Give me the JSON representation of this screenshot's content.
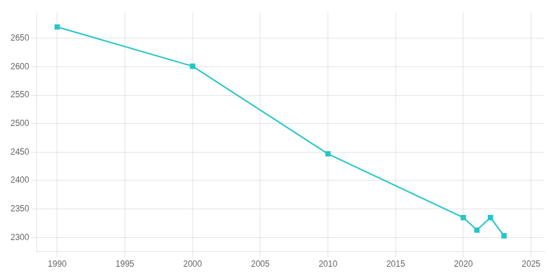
{
  "chart_data": {
    "type": "line",
    "x": [
      1990,
      2000,
      2010,
      2020,
      2021,
      2022,
      2023
    ],
    "values": [
      2670,
      2601,
      2447,
      2335,
      2313,
      2335,
      2303
    ],
    "color": "#26C6C6",
    "marker": "square",
    "xlim": [
      1988.5,
      2026
    ],
    "ylim": [
      2275,
      2695
    ],
    "xticks": [
      1990,
      1995,
      2000,
      2005,
      2010,
      2015,
      2020,
      2025
    ],
    "yticks": [
      2300,
      2350,
      2400,
      2450,
      2500,
      2550,
      2600,
      2650
    ],
    "grid": true
  }
}
